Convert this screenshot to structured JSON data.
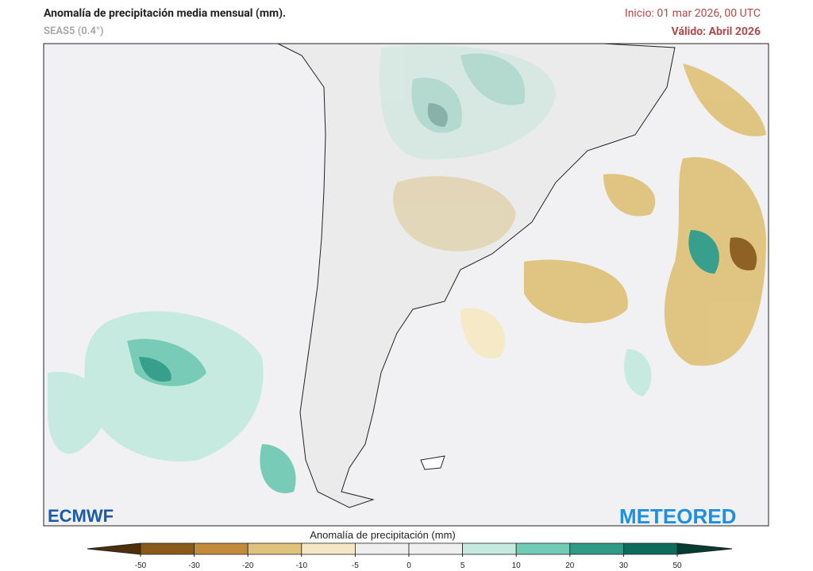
{
  "header": {
    "title": "Anomalía de precipitación media mensual (mm).",
    "model": "SEAS5 (0.4°)",
    "init": "Inicio: 01 mar 2026, 00 UTC",
    "valid": "Válido: Abril 2026"
  },
  "logos": {
    "left": "ECMWF",
    "right": "METEORED"
  },
  "legend": {
    "title": "Anomalía de precipitación (mm)",
    "ticks": [
      -50,
      -30,
      -20,
      -10,
      -5,
      0,
      5,
      10,
      20,
      30,
      50
    ],
    "colors": [
      "#4f2f08",
      "#8b5a1a",
      "#c28b3c",
      "#dfc27c",
      "#f4e8c4",
      "#efefef",
      "#efefef",
      "#c4eadf",
      "#72cbb4",
      "#2f9b87",
      "#0d6c5c",
      "#053d33"
    ]
  }
}
